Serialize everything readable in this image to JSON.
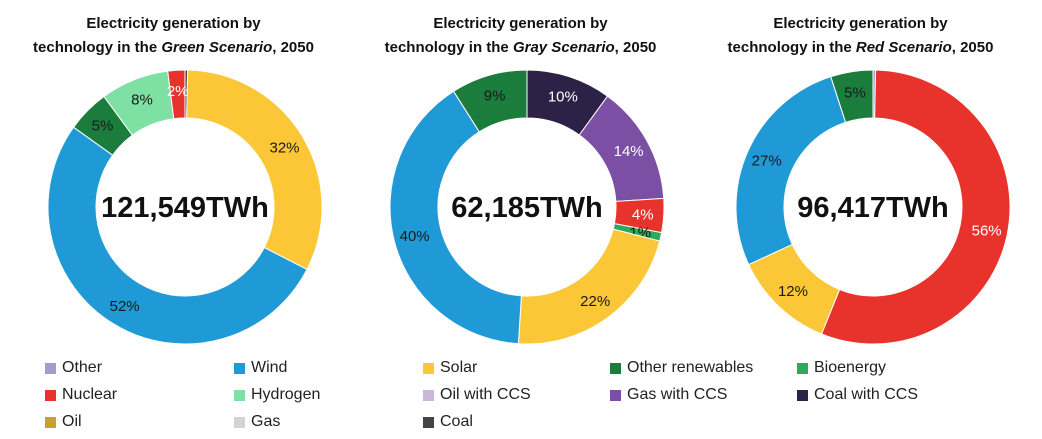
{
  "chart_data": [
    {
      "type": "pie",
      "title_line1": "Electricity generation by",
      "title_prefix": "technology in the ",
      "title_italic": "Green Scenario",
      "title_suffix": ", 2050",
      "total_label": "121,549TWh",
      "slices": [
        {
          "name": "Coal",
          "value": 0.3,
          "label": ""
        },
        {
          "name": "Solar",
          "value": 32,
          "label": "32%"
        },
        {
          "name": "Wind",
          "value": 52,
          "label": "52%"
        },
        {
          "name": "Other renewables",
          "value": 5,
          "label": "5%"
        },
        {
          "name": "Hydrogen",
          "value": 8,
          "label": "8%"
        },
        {
          "name": "Nuclear",
          "value": 2,
          "label": "2%"
        }
      ]
    },
    {
      "type": "pie",
      "title_line1": "Electricity generation by",
      "title_prefix": "technology in the ",
      "title_italic": "Gray Scenario",
      "title_suffix": ", 2050",
      "total_label": "62,185TWh",
      "slices": [
        {
          "name": "Coal with CCS",
          "value": 10,
          "label": "10%"
        },
        {
          "name": "Gas with CCS",
          "value": 14,
          "label": "14%"
        },
        {
          "name": "Nuclear",
          "value": 4,
          "label": "4%"
        },
        {
          "name": "Bioenergy",
          "value": 1,
          "label": "1%"
        },
        {
          "name": "Solar",
          "value": 22,
          "label": "22%"
        },
        {
          "name": "Wind",
          "value": 40,
          "label": "40%"
        },
        {
          "name": "Other renewables",
          "value": 9,
          "label": "9%"
        }
      ]
    },
    {
      "type": "pie",
      "title_line1": "Electricity generation by",
      "title_prefix": "technology in the ",
      "title_italic": "Red Scenario",
      "title_suffix": ", 2050",
      "total_label": "96,417TWh",
      "slices": [
        {
          "name": "Other",
          "value": 0.3,
          "label": ""
        },
        {
          "name": "Nuclear",
          "value": 56,
          "label": "56%"
        },
        {
          "name": "Solar",
          "value": 12,
          "label": "12%"
        },
        {
          "name": "Wind",
          "value": 27,
          "label": "27%"
        },
        {
          "name": "Other renewables",
          "value": 5,
          "label": "5%"
        }
      ]
    }
  ],
  "legend": [
    {
      "name": "Other",
      "color": "#a99bc9"
    },
    {
      "name": "Wind",
      "color": "#1f9ad6"
    },
    {
      "name": "Solar",
      "color": "#fcc737"
    },
    {
      "name": "Other renewables",
      "color": "#1b7d3c"
    },
    {
      "name": "Bioenergy",
      "color": "#2aaa5a"
    },
    {
      "name": "Nuclear",
      "color": "#e8332d"
    },
    {
      "name": "Hydrogen",
      "color": "#7ee0a2"
    },
    {
      "name": "Oil with CCS",
      "color": "#cdb6dc"
    },
    {
      "name": "Gas with CCS",
      "color": "#7b4fa3"
    },
    {
      "name": "Coal with CCS",
      "color": "#2c2146"
    },
    {
      "name": "Oil",
      "color": "#c9a02b"
    },
    {
      "name": "Gas",
      "color": "#d3d3d3"
    },
    {
      "name": "Coal",
      "color": "#444444"
    }
  ]
}
